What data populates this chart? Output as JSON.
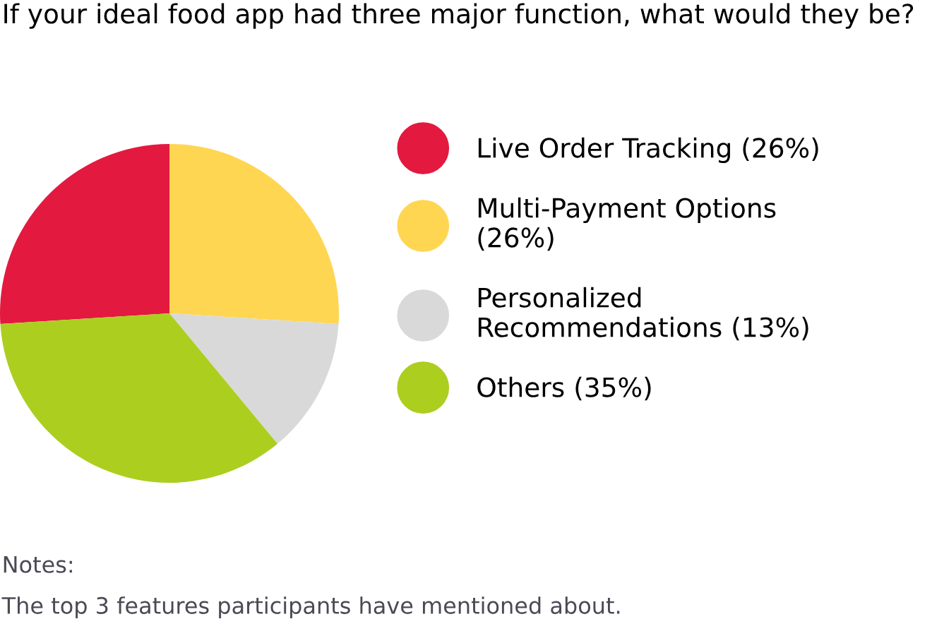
{
  "chart_data": {
    "type": "pie",
    "title": "If your ideal food app had three major function, what would they be?",
    "categories": [
      "Live Order Tracking (26%)",
      "Multi-Payment Options\n(26%)",
      "Personalized\nRecommendations (13%)",
      "Others (35%)"
    ],
    "values": [
      26,
      26,
      13,
      35
    ],
    "colors": [
      "#e31940",
      "#ffd652",
      "#d9d9d9",
      "#acce1f"
    ],
    "legend": "right",
    "annotations": [
      "Notes:",
      "The top 3 features participants have mentioned about."
    ]
  }
}
